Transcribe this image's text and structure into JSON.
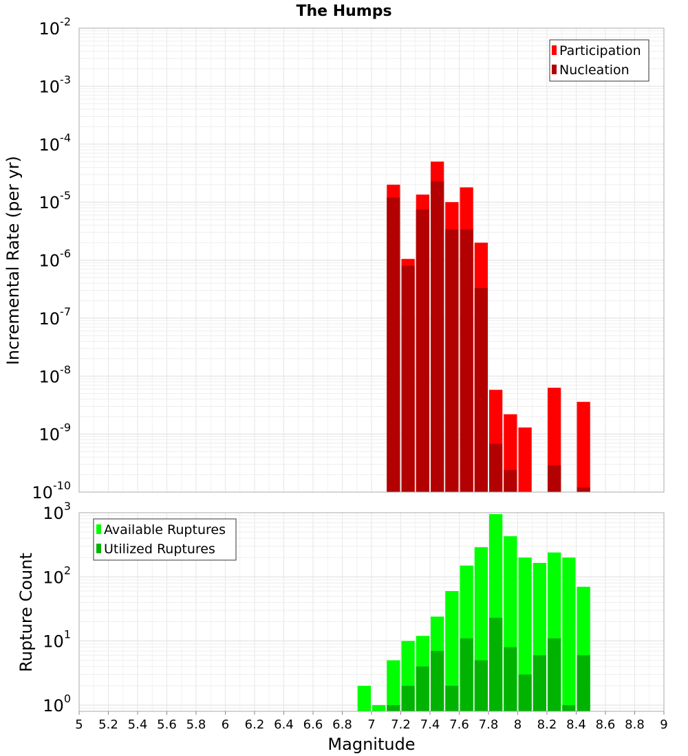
{
  "title": "The Humps",
  "xlabel": "Magnitude",
  "x_ticks": [
    "5",
    "5.2",
    "5.4",
    "5.6",
    "5.8",
    "6",
    "6.2",
    "6.4",
    "6.6",
    "6.8",
    "7",
    "7.2",
    "7.4",
    "7.6",
    "7.8",
    "8",
    "8.2",
    "8.4",
    "8.6",
    "8.8",
    "9"
  ],
  "chart_data": [
    {
      "type": "bar",
      "title": "The Humps",
      "xlabel": "",
      "ylabel": "Incremental Rate (per yr)",
      "yscale": "log",
      "xlim": [
        5,
        9
      ],
      "ylim": [
        1e-10,
        0.01
      ],
      "y_tick_bases": [
        "10",
        "10",
        "10",
        "10",
        "10",
        "10",
        "10",
        "10",
        "10"
      ],
      "y_tick_exponents": [
        "-10",
        "-9",
        "-8",
        "-7",
        "-6",
        "-5",
        "-4",
        "-3",
        "-2"
      ],
      "grid": true,
      "legend_position": "top-right",
      "x": [
        7.15,
        7.25,
        7.35,
        7.45,
        7.55,
        7.65,
        7.75,
        7.85,
        7.95,
        8.05,
        8.15,
        8.25,
        8.35,
        8.45
      ],
      "series": [
        {
          "name": "Participation",
          "color": "#ff0000",
          "values": [
            2e-05,
            1.05e-06,
            1.35e-05,
            5e-05,
            1e-05,
            1.8e-05,
            2e-06,
            5.8e-09,
            2.2e-09,
            1.3e-09,
            null,
            6.3e-09,
            null,
            3.6e-09
          ]
        },
        {
          "name": "Nucleation",
          "color": "#b30000",
          "values": [
            1.2e-05,
            8e-07,
            7.5e-06,
            2.3e-05,
            3.4e-06,
            3.4e-06,
            3.3e-07,
            6.8e-10,
            2.4e-10,
            null,
            null,
            2.9e-10,
            null,
            1.2e-10
          ]
        }
      ]
    },
    {
      "type": "bar",
      "title": "",
      "xlabel": "Magnitude",
      "ylabel": "Rupture Count",
      "yscale": "log",
      "xlim": [
        5,
        9
      ],
      "ylim": [
        0.8,
        1000
      ],
      "y_tick_bases": [
        "10",
        "10",
        "10",
        "10"
      ],
      "y_tick_exponents": [
        "0",
        "1",
        "2",
        "3"
      ],
      "grid": true,
      "legend_position": "top-left",
      "x": [
        6.95,
        7.05,
        7.15,
        7.25,
        7.35,
        7.45,
        7.55,
        7.65,
        7.75,
        7.85,
        7.95,
        8.05,
        8.15,
        8.25,
        8.35,
        8.45
      ],
      "series": [
        {
          "name": "Available Ruptures",
          "color": "#00ff00",
          "values": [
            2,
            1,
            5,
            10,
            12,
            24,
            60,
            150,
            290,
            950,
            430,
            200,
            165,
            240,
            200,
            70
          ]
        },
        {
          "name": "Utilized Ruptures",
          "color": "#00b300",
          "values": [
            null,
            null,
            1,
            2,
            4,
            7,
            2,
            11,
            5,
            23,
            8,
            3,
            6,
            11,
            1,
            6
          ]
        }
      ]
    }
  ]
}
